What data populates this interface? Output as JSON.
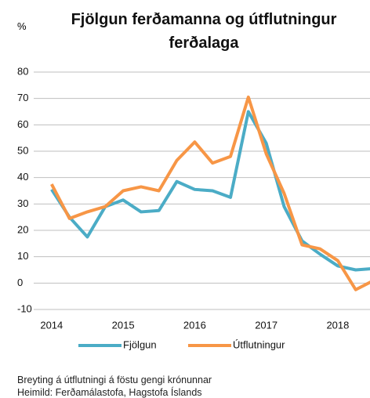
{
  "chart_data": {
    "type": "line",
    "title": "Fjölgun ferðamanna og útflutningur ferðalaga",
    "y_unit": "%",
    "x": [
      2014,
      2014.25,
      2014.5,
      2014.75,
      2015,
      2015.25,
      2015.5,
      2015.75,
      2016,
      2016.25,
      2016.5,
      2016.75,
      2017,
      2017.25,
      2017.5,
      2017.75,
      2018,
      2018.25,
      2018.5
    ],
    "series": [
      {
        "name": "Fjölgun",
        "color": "#4bacc6",
        "values": [
          35.5,
          25,
          17.5,
          29,
          31.5,
          27,
          27.5,
          38.5,
          35.5,
          35,
          32.5,
          65,
          53,
          29,
          16,
          11,
          6.5,
          5,
          5.5
        ]
      },
      {
        "name": "Útflutningur",
        "color": "#f79646",
        "values": [
          37.5,
          24.5,
          27,
          29,
          35,
          36.5,
          35,
          46.5,
          53.5,
          45.5,
          48,
          70.5,
          49,
          34,
          14.5,
          13,
          8.5,
          -2.5,
          1
        ]
      }
    ],
    "xlim": [
      2013.75,
      2018.45
    ],
    "xticks": [
      2014,
      2015,
      2016,
      2017,
      2018
    ],
    "ylim": [
      -10,
      80
    ],
    "yticks": [
      -10,
      0,
      10,
      20,
      30,
      40,
      50,
      60,
      70,
      80
    ],
    "grid": true,
    "notes": [
      "Breyting á útflutningi á föstu gengi krónunnar",
      "Heimild: Ferðamálastofa, Hagstofa Íslands"
    ]
  }
}
